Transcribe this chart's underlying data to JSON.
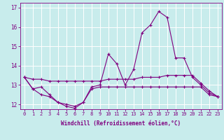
{
  "xlabel": "Windchill (Refroidissement éolien,°C)",
  "bg_color": "#c8ecec",
  "line_color": "#800080",
  "grid_color": "#ffffff",
  "xmin": -0.5,
  "xmax": 23.5,
  "ymin": 11.75,
  "ymax": 17.25,
  "yticks": [
    12,
    13,
    14,
    15,
    16,
    17
  ],
  "xticks": [
    0,
    1,
    2,
    3,
    4,
    5,
    6,
    7,
    8,
    9,
    10,
    11,
    12,
    13,
    14,
    15,
    16,
    17,
    18,
    19,
    20,
    21,
    22,
    23
  ],
  "line1": [
    13.4,
    12.8,
    12.9,
    12.5,
    12.1,
    11.9,
    11.8,
    12.1,
    12.9,
    13.0,
    14.6,
    14.1,
    13.0,
    13.8,
    15.7,
    16.1,
    16.8,
    16.5,
    14.4,
    14.4,
    13.4,
    13.0,
    12.6,
    12.4
  ],
  "line2": [
    13.4,
    13.3,
    13.3,
    13.2,
    13.2,
    13.2,
    13.2,
    13.2,
    13.2,
    13.2,
    13.3,
    13.3,
    13.3,
    13.3,
    13.4,
    13.4,
    13.4,
    13.5,
    13.5,
    13.5,
    13.5,
    13.1,
    12.7,
    12.4
  ],
  "line3": [
    13.4,
    12.8,
    12.5,
    12.4,
    12.1,
    12.0,
    11.9,
    12.1,
    12.8,
    12.9,
    12.9,
    12.9,
    12.9,
    12.9,
    12.9,
    12.9,
    12.9,
    12.9,
    12.9,
    12.9,
    12.9,
    12.9,
    12.5,
    12.4
  ]
}
